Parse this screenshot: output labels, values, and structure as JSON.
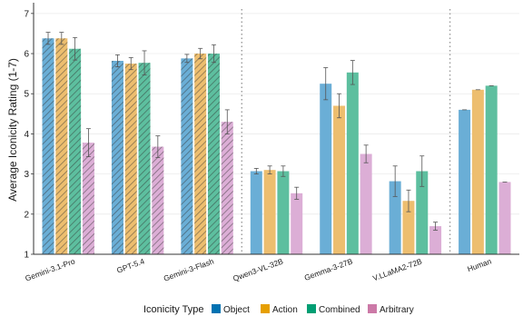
{
  "chart_data": {
    "type": "bar",
    "title": "",
    "xlabel": "",
    "ylabel": "Average Iconicity Rating (1-7)",
    "ylim": [
      1,
      7.2
    ],
    "yticks": [
      "1",
      "2",
      "3",
      "4",
      "5",
      "6",
      "7"
    ],
    "grid": true,
    "hatched_categories": [
      "Gemini-3.1-Pro",
      "GPT-5.4",
      "Gemini-3-Flash"
    ],
    "separators_after": [
      "Gemini-3-Flash",
      "V.LLaMA2-72B"
    ],
    "categories": [
      "Gemini-3.1-Pro",
      "GPT-5.4",
      "Gemini-3-Flash",
      "Qwen3-VL-32B",
      "Gemma-3-27B",
      "V.LLaMA2-72B",
      "Human"
    ],
    "legend": {
      "title": "Iconicity Type",
      "position": "bottom"
    },
    "series": [
      {
        "name": "Object",
        "color": "#6aaed6",
        "values": [
          6.38,
          5.82,
          5.88,
          3.07,
          5.25,
          2.82,
          4.6
        ],
        "errors": [
          0.15,
          0.15,
          0.1,
          0.07,
          0.4,
          0.38,
          0.0
        ]
      },
      {
        "name": "Action",
        "color": "#edbe6f",
        "values": [
          6.38,
          5.75,
          6.0,
          3.1,
          4.7,
          2.33,
          5.1
        ],
        "errors": [
          0.15,
          0.15,
          0.13,
          0.1,
          0.3,
          0.27,
          0.0
        ]
      },
      {
        "name": "Combined",
        "color": "#5dbf9f",
        "values": [
          6.12,
          5.77,
          6.0,
          3.07,
          5.53,
          3.07,
          5.2
        ],
        "errors": [
          0.28,
          0.3,
          0.22,
          0.13,
          0.3,
          0.38,
          0.0
        ]
      },
      {
        "name": "Arbitrary",
        "color": "#dcaed6",
        "values": [
          3.78,
          3.68,
          4.3,
          2.52,
          3.5,
          1.7,
          2.8
        ],
        "errors": [
          0.35,
          0.27,
          0.3,
          0.15,
          0.22,
          0.1,
          0.0
        ]
      }
    ],
    "legend_swatch_colors": [
      "#0072b2",
      "#e69f00",
      "#009e73",
      "#cc79a7"
    ]
  }
}
